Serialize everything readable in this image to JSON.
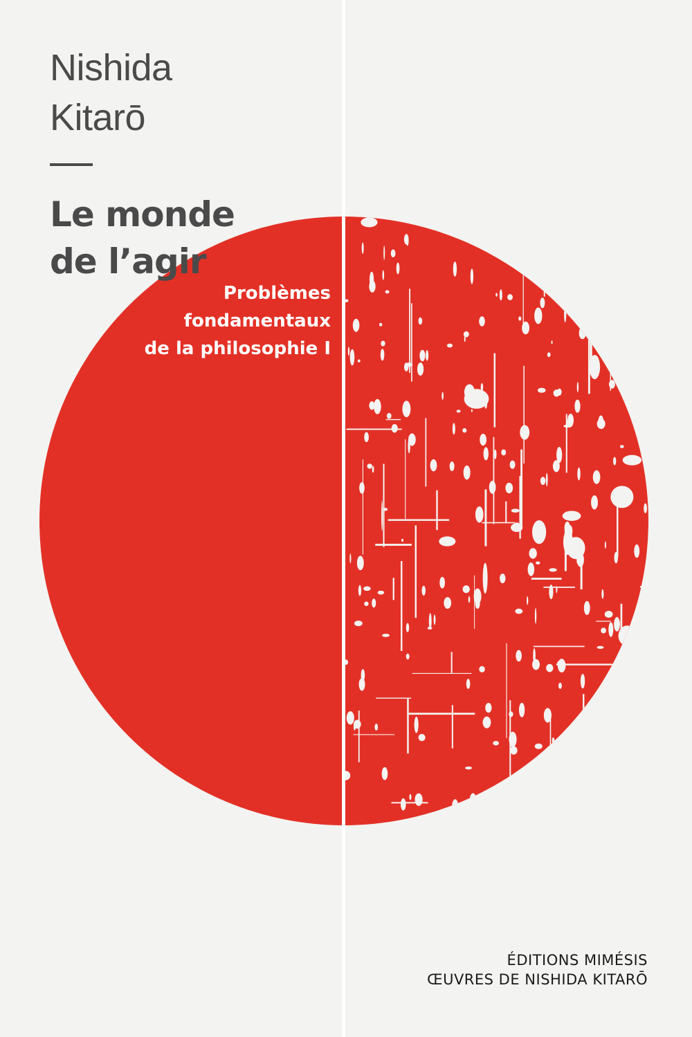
{
  "cover": {
    "author_line1": "Nishida",
    "author_line2": "Kitarō",
    "title_line1": "Le monde",
    "title_line2": "de l’agir",
    "subtitle_lines": [
      "Problèmes",
      "fondamentaux",
      "de la philosophie I"
    ],
    "publisher": "ÉDITIONS MIMÉSIS",
    "series": "ŒUVRES DE NISHIDA KITARŌ"
  },
  "colors": {
    "background": "#f3f3f1",
    "circle_red": "#e33026",
    "text_gray": "#4a4a4a",
    "divider_white": "#ffffff"
  }
}
